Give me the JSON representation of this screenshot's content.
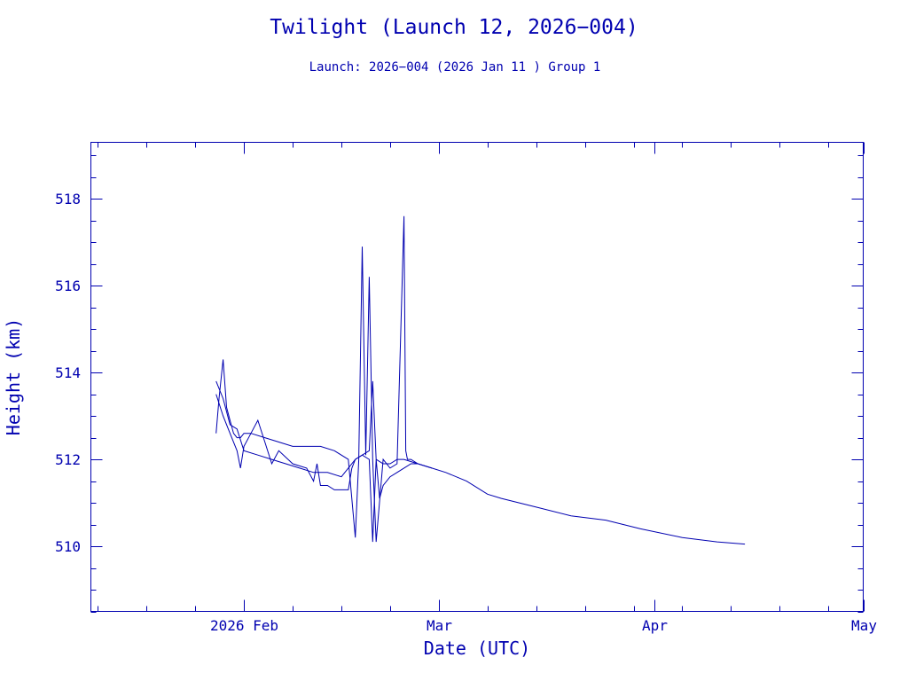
{
  "chart_data": {
    "type": "line",
    "title": "Twilight (Launch 12, 2026−004)",
    "subtitle": "Launch: 2026−004  (2026 Jan 11 )  Group 1",
    "xlabel": "Date (UTC)",
    "ylabel": "Height (km)",
    "xlim": [
      "2026-01-10",
      "2026-05-01"
    ],
    "ylim": [
      508.5,
      519.3
    ],
    "x_ticks": [
      {
        "date": "2026-02-01",
        "label": "2026 Feb"
      },
      {
        "date": "2026-03-01",
        "label": "Mar"
      },
      {
        "date": "2026-04-01",
        "label": "Apr"
      },
      {
        "date": "2026-05-01",
        "label": "May"
      }
    ],
    "y_ticks": [
      510,
      512,
      514,
      516,
      518
    ],
    "grid": false,
    "color": "#0000b0",
    "series": [
      {
        "x": [
          "2026-01-28T00:00",
          "2026-01-28T10:00",
          "2026-01-29T00:00",
          "2026-01-29T12:00",
          "2026-01-30T00:00",
          "2026-01-30T12:00",
          "2026-01-31T00:00",
          "2026-01-31T12:00",
          "2026-02-01T00:00",
          "2026-02-02T00:00",
          "2026-02-04T00:00",
          "2026-02-06T00:00",
          "2026-02-08T00:00",
          "2026-02-10T00:00",
          "2026-02-12T00:00",
          "2026-02-14T00:00",
          "2026-02-16T00:00",
          "2026-02-17T00:00",
          "2026-02-17T12:00",
          "2026-02-18T00:00",
          "2026-02-18T12:00",
          "2026-02-19T00:00",
          "2026-02-19T12:00",
          "2026-02-20T00:00",
          "2026-02-21T00:00",
          "2026-02-22T00:00",
          "2026-02-23T00:00",
          "2026-02-24T00:00",
          "2026-02-24T06:00",
          "2026-02-24T12:00",
          "2026-02-25T00:00",
          "2026-02-26T00:00",
          "2026-02-28T00:00",
          "2026-03-02T00:00",
          "2026-03-05T00:00",
          "2026-03-08T00:00",
          "2026-03-10T00:00",
          "2026-03-15T00:00",
          "2026-03-20T00:00",
          "2026-03-25T00:00",
          "2026-03-30T00:00",
          "2026-04-05T00:00",
          "2026-04-10T00:00",
          "2026-04-14T00:00"
        ],
        "values": [
          512.6,
          513.4,
          514.3,
          513.2,
          512.9,
          512.6,
          512.5,
          512.5,
          512.6,
          512.6,
          512.5,
          512.4,
          512.3,
          512.3,
          512.3,
          512.2,
          512.0,
          510.2,
          512.0,
          516.9,
          512.1,
          516.2,
          512.0,
          510.1,
          512.0,
          511.8,
          511.9,
          517.6,
          512.2,
          512.0,
          512.0,
          511.9,
          511.8,
          511.7,
          511.5,
          511.2,
          511.1,
          510.9,
          510.7,
          510.6,
          510.4,
          510.2,
          510.1,
          510.05
        ]
      },
      {
        "x": [
          "2026-01-28T00:00",
          "2026-01-29T00:00",
          "2026-01-30T00:00",
          "2026-01-31T00:00",
          "2026-02-01T00:00",
          "2026-02-03T00:00",
          "2026-02-05T00:00",
          "2026-02-07T00:00",
          "2026-02-09T00:00",
          "2026-02-11T00:00",
          "2026-02-13T00:00",
          "2026-02-15T00:00",
          "2026-02-16T00:00",
          "2026-02-17T00:00",
          "2026-02-18T00:00",
          "2026-02-19T00:00",
          "2026-02-19T12:00",
          "2026-02-20T00:00",
          "2026-02-21T00:00",
          "2026-02-22T00:00",
          "2026-02-23T00:00",
          "2026-02-24T00:00",
          "2026-02-26T00:00",
          "2026-02-28T00:00"
        ],
        "values": [
          513.8,
          513.4,
          512.8,
          512.7,
          512.2,
          512.1,
          512.0,
          511.9,
          511.8,
          511.7,
          511.7,
          511.6,
          511.8,
          512.0,
          512.1,
          512.2,
          513.8,
          512.0,
          511.9,
          511.9,
          512.0,
          512.0,
          511.9,
          511.8
        ]
      },
      {
        "x": [
          "2026-01-28T00:00",
          "2026-01-29T00:00",
          "2026-01-30T00:00",
          "2026-01-31T00:00",
          "2026-01-31T12:00",
          "2026-02-01T00:00",
          "2026-02-02T00:00",
          "2026-02-03T00:00",
          "2026-02-04T00:00",
          "2026-02-05T00:00",
          "2026-02-06T00:00",
          "2026-02-08T00:00",
          "2026-02-10T00:00",
          "2026-02-11T00:00",
          "2026-02-11T12:00",
          "2026-02-12T00:00",
          "2026-02-13T00:00",
          "2026-02-14T00:00",
          "2026-02-16T00:00",
          "2026-02-16T12:00",
          "2026-02-17T00:00",
          "2026-02-18T00:00",
          "2026-02-19T00:00",
          "2026-02-19T12:00",
          "2026-02-20T00:00",
          "2026-02-20T12:00",
          "2026-02-21T00:00",
          "2026-02-22T00:00",
          "2026-02-23T00:00",
          "2026-02-24T00:00",
          "2026-02-25T00:00",
          "2026-02-26T00:00"
        ],
        "values": [
          513.5,
          513.0,
          512.6,
          512.2,
          511.8,
          512.3,
          512.6,
          512.9,
          512.4,
          511.9,
          512.2,
          511.9,
          511.8,
          511.5,
          511.9,
          511.4,
          511.4,
          511.3,
          511.3,
          511.8,
          512.0,
          512.1,
          512.0,
          510.1,
          512.0,
          511.1,
          511.4,
          511.6,
          511.7,
          511.8,
          511.9,
          511.9
        ]
      }
    ]
  }
}
